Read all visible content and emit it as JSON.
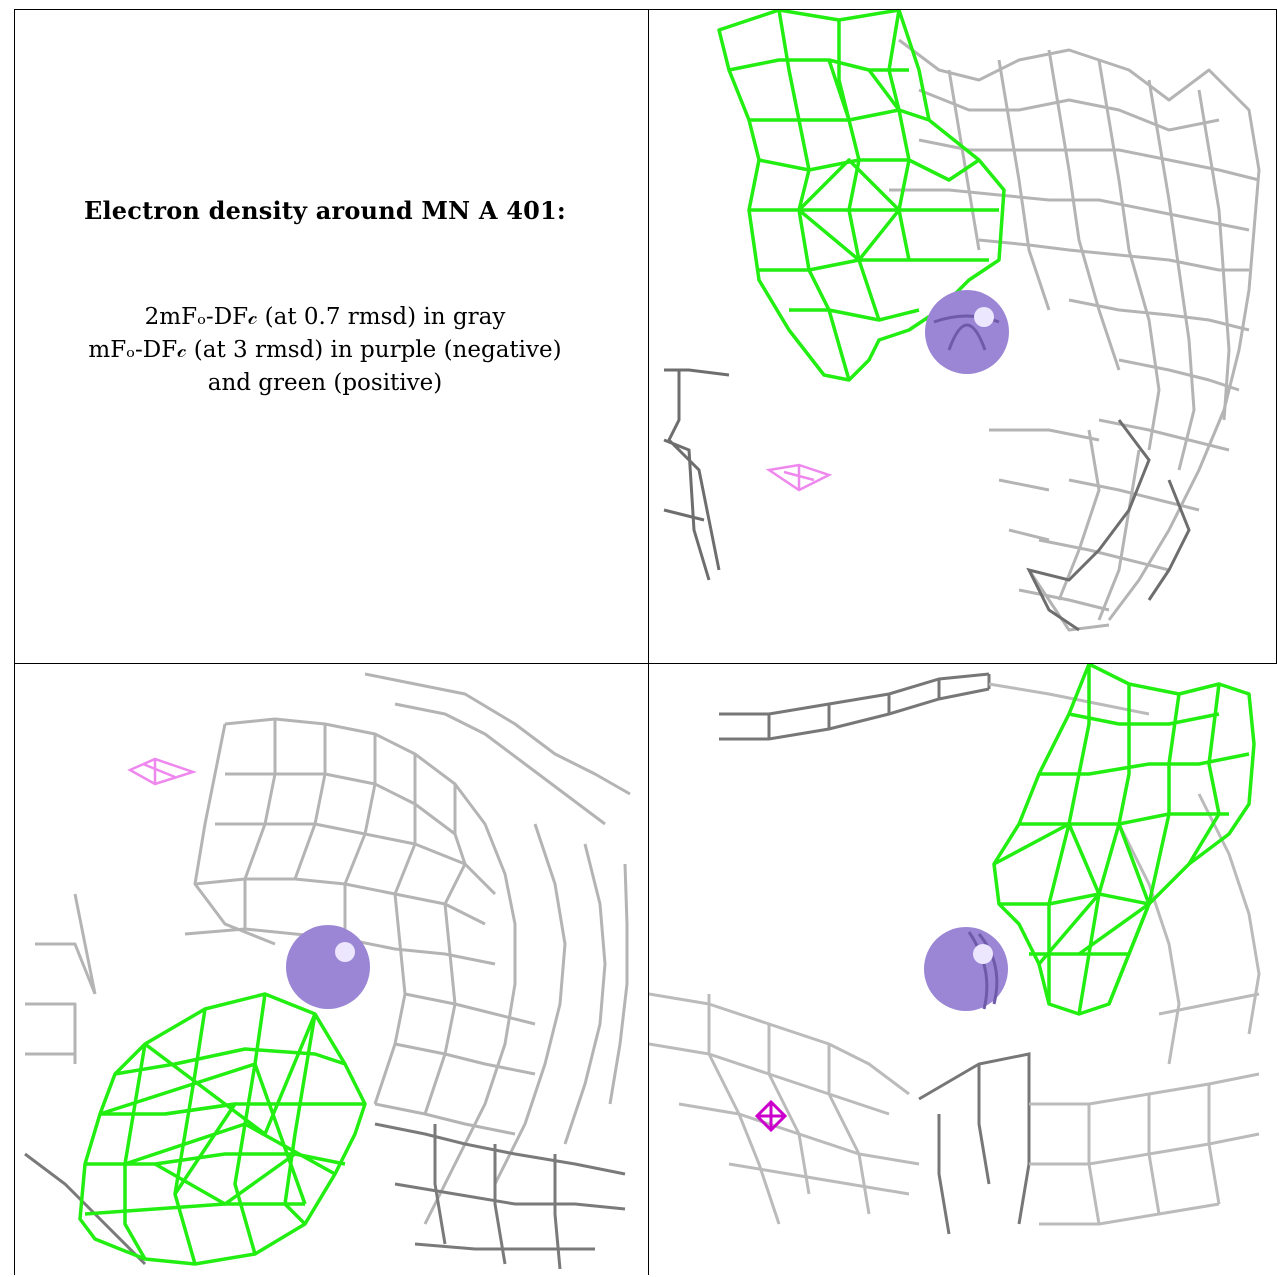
{
  "caption": {
    "title": "Electron density around MN A 401:",
    "line1": "2mFₒ-DF𝒸 (at 0.7 rmsd) in gray",
    "line2": "mFₒ-DF𝒸 (at 3 rmsd) in purple (negative)",
    "line3": "and green (positive)"
  },
  "colors": {
    "map_2fofc": "#a8a8a8",
    "map_positive": "#22ee11",
    "map_negative_light": "#ee88ee",
    "map_negative_dark": "#cc00cc",
    "atom_mn": "#9a86d4"
  },
  "panels": [
    {
      "name": "view-1",
      "atom": "MN"
    },
    {
      "name": "view-2",
      "atom": "MN"
    },
    {
      "name": "view-3",
      "atom": "MN"
    }
  ]
}
